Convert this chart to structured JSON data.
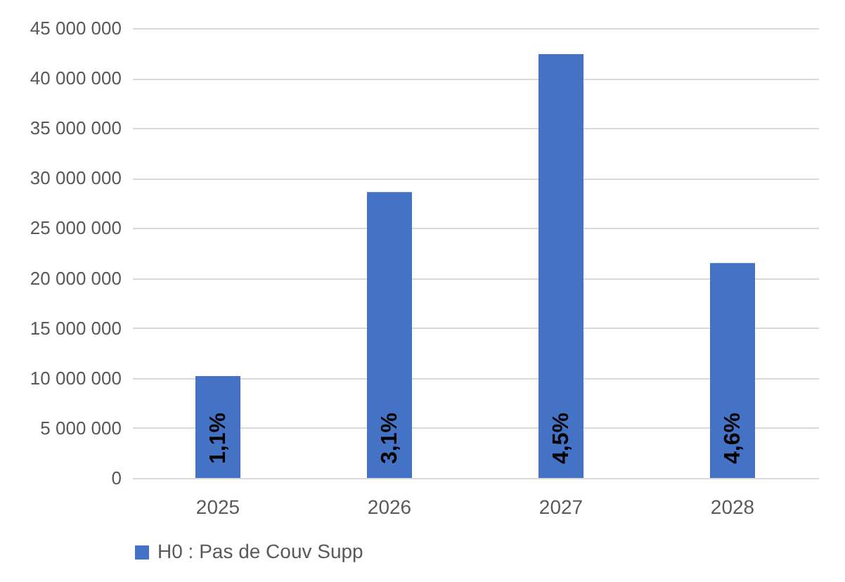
{
  "chart_data": {
    "type": "bar",
    "categories": [
      "2025",
      "2026",
      "2027",
      "2028"
    ],
    "series": [
      {
        "name": "H0 : Pas de Couv Supp",
        "color": "#4472c4",
        "values": [
          10200000,
          28600000,
          42400000,
          21500000
        ]
      }
    ],
    "annotations": [
      {
        "text": "1,1%",
        "x": "2025",
        "y": 0
      },
      {
        "text": "3,1%",
        "x": "2026",
        "y": 0
      },
      {
        "text": "4,5%",
        "x": "2027",
        "y": 0
      },
      {
        "text": "4,6%",
        "x": "2028",
        "y": 0
      }
    ],
    "ylim": [
      0,
      45000000
    ],
    "yticks": [
      {
        "value": 0,
        "label": "0"
      },
      {
        "value": 5000000,
        "label": "5 000 000"
      },
      {
        "value": 10000000,
        "label": "10 000 000"
      },
      {
        "value": 15000000,
        "label": "15 000 000"
      },
      {
        "value": 20000000,
        "label": "20 000 000"
      },
      {
        "value": 25000000,
        "label": "25 000 000"
      },
      {
        "value": 30000000,
        "label": "30 000 000"
      },
      {
        "value": 35000000,
        "label": "35 000 000"
      },
      {
        "value": 40000000,
        "label": "40 000 000"
      },
      {
        "value": 45000000,
        "label": "45 000 000"
      }
    ],
    "grid": "y",
    "legend": "bottom"
  }
}
